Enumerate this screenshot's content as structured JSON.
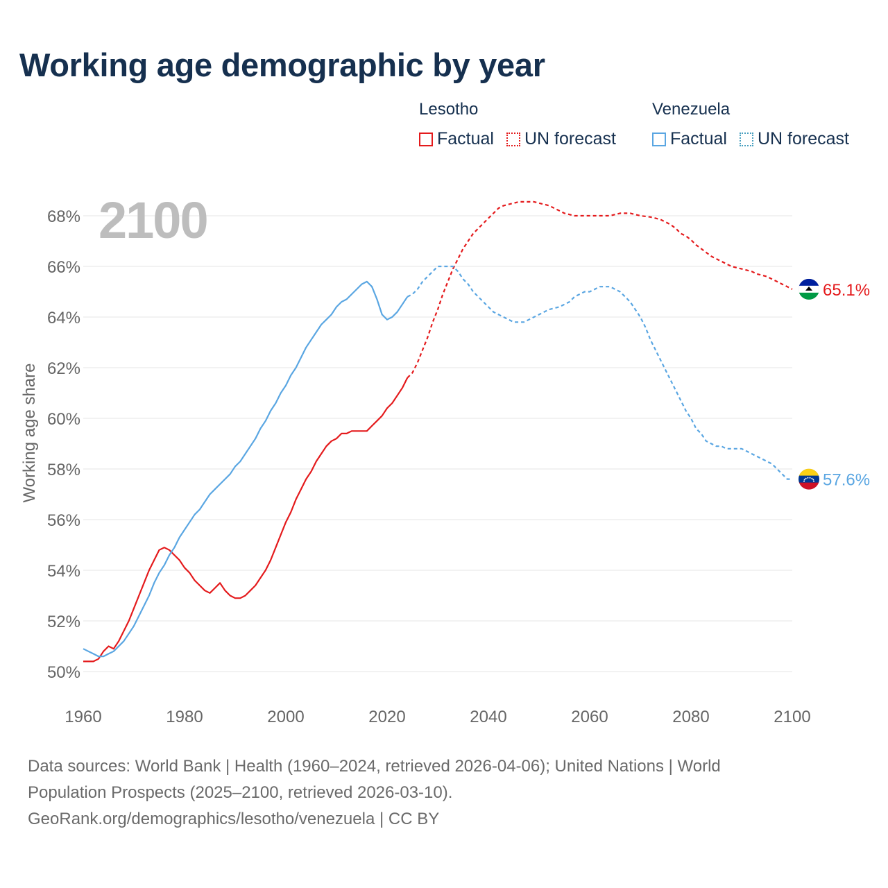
{
  "title": "Working age demographic by year",
  "year_badge": "2100",
  "legend": {
    "groups": [
      {
        "name": "Lesotho",
        "color": "#e41a1c",
        "factual_label": "Factual",
        "forecast_label": "UN forecast"
      },
      {
        "name": "Venezuela",
        "color": "#5aa6e2",
        "forecast_color": "#4aa0c0",
        "factual_label": "Factual",
        "forecast_label": "UN forecast"
      }
    ]
  },
  "source": {
    "line1": "Data sources: World Bank | Health (1960–2024, retrieved 2026-04-06); United Nations | World",
    "line2": "Population Prospects (2025–2100, retrieved 2026-03-10).",
    "line3": "GeoRank.org/demographics/lesotho/venezuela | CC BY"
  },
  "chart_data": {
    "type": "line",
    "title": "Working age demographic by year",
    "xlabel": "",
    "ylabel": "Working age share",
    "xlim": [
      1960,
      2100
    ],
    "ylim": [
      49.5,
      68.7
    ],
    "x_ticks": [
      1960,
      1980,
      2000,
      2020,
      2040,
      2060,
      2080,
      2100
    ],
    "y_ticks": [
      50,
      52,
      54,
      56,
      58,
      60,
      62,
      64,
      66,
      68
    ],
    "y_tick_suffix": "%",
    "grid": true,
    "forecast_start_year": 2024,
    "series": [
      {
        "name": "Lesotho",
        "color": "#e41a1c",
        "end_label": "65.1%",
        "points": [
          [
            1960,
            50.4
          ],
          [
            1962,
            50.4
          ],
          [
            1963,
            50.5
          ],
          [
            1964,
            50.8
          ],
          [
            1965,
            51.0
          ],
          [
            1966,
            50.9
          ],
          [
            1967,
            51.2
          ],
          [
            1968,
            51.6
          ],
          [
            1969,
            52.0
          ],
          [
            1970,
            52.5
          ],
          [
            1971,
            53.0
          ],
          [
            1972,
            53.5
          ],
          [
            1973,
            54.0
          ],
          [
            1974,
            54.4
          ],
          [
            1975,
            54.8
          ],
          [
            1976,
            54.9
          ],
          [
            1977,
            54.8
          ],
          [
            1978,
            54.6
          ],
          [
            1979,
            54.4
          ],
          [
            1980,
            54.1
          ],
          [
            1981,
            53.9
          ],
          [
            1982,
            53.6
          ],
          [
            1983,
            53.4
          ],
          [
            1984,
            53.2
          ],
          [
            1985,
            53.1
          ],
          [
            1986,
            53.3
          ],
          [
            1987,
            53.5
          ],
          [
            1988,
            53.2
          ],
          [
            1989,
            53.0
          ],
          [
            1990,
            52.9
          ],
          [
            1991,
            52.9
          ],
          [
            1992,
            53.0
          ],
          [
            1993,
            53.2
          ],
          [
            1994,
            53.4
          ],
          [
            1995,
            53.7
          ],
          [
            1996,
            54.0
          ],
          [
            1997,
            54.4
          ],
          [
            1998,
            54.9
          ],
          [
            1999,
            55.4
          ],
          [
            2000,
            55.9
          ],
          [
            2001,
            56.3
          ],
          [
            2002,
            56.8
          ],
          [
            2003,
            57.2
          ],
          [
            2004,
            57.6
          ],
          [
            2005,
            57.9
          ],
          [
            2006,
            58.3
          ],
          [
            2007,
            58.6
          ],
          [
            2008,
            58.9
          ],
          [
            2009,
            59.1
          ],
          [
            2010,
            59.2
          ],
          [
            2011,
            59.4
          ],
          [
            2012,
            59.4
          ],
          [
            2013,
            59.5
          ],
          [
            2014,
            59.5
          ],
          [
            2015,
            59.5
          ],
          [
            2016,
            59.5
          ],
          [
            2017,
            59.7
          ],
          [
            2018,
            59.9
          ],
          [
            2019,
            60.1
          ],
          [
            2020,
            60.4
          ],
          [
            2021,
            60.6
          ],
          [
            2022,
            60.9
          ],
          [
            2023,
            61.2
          ],
          [
            2024,
            61.6
          ],
          [
            2025,
            61.8
          ],
          [
            2026,
            62.2
          ],
          [
            2027,
            62.7
          ],
          [
            2028,
            63.2
          ],
          [
            2029,
            63.8
          ],
          [
            2030,
            64.3
          ],
          [
            2031,
            64.9
          ],
          [
            2032,
            65.4
          ],
          [
            2033,
            65.9
          ],
          [
            2034,
            66.3
          ],
          [
            2035,
            66.7
          ],
          [
            2036,
            67.0
          ],
          [
            2037,
            67.3
          ],
          [
            2038,
            67.5
          ],
          [
            2039,
            67.7
          ],
          [
            2040,
            67.9
          ],
          [
            2041,
            68.1
          ],
          [
            2042,
            68.3
          ],
          [
            2043,
            68.4
          ],
          [
            2044,
            68.45
          ],
          [
            2045,
            68.5
          ],
          [
            2046,
            68.55
          ],
          [
            2047,
            68.55
          ],
          [
            2048,
            68.55
          ],
          [
            2049,
            68.55
          ],
          [
            2050,
            68.5
          ],
          [
            2051,
            68.45
          ],
          [
            2052,
            68.4
          ],
          [
            2053,
            68.3
          ],
          [
            2054,
            68.2
          ],
          [
            2055,
            68.1
          ],
          [
            2056,
            68.05
          ],
          [
            2057,
            68.0
          ],
          [
            2058,
            68.0
          ],
          [
            2060,
            68.0
          ],
          [
            2062,
            68.0
          ],
          [
            2064,
            68.0
          ],
          [
            2065,
            68.05
          ],
          [
            2066,
            68.1
          ],
          [
            2068,
            68.1
          ],
          [
            2069,
            68.05
          ],
          [
            2070,
            68.0
          ],
          [
            2072,
            67.95
          ],
          [
            2073,
            67.9
          ],
          [
            2074,
            67.85
          ],
          [
            2075,
            67.75
          ],
          [
            2076,
            67.65
          ],
          [
            2077,
            67.5
          ],
          [
            2078,
            67.3
          ],
          [
            2079,
            67.2
          ],
          [
            2080,
            67.05
          ],
          [
            2081,
            66.85
          ],
          [
            2082,
            66.7
          ],
          [
            2083,
            66.55
          ],
          [
            2084,
            66.4
          ],
          [
            2085,
            66.3
          ],
          [
            2086,
            66.2
          ],
          [
            2087,
            66.1
          ],
          [
            2088,
            66.0
          ],
          [
            2090,
            65.9
          ],
          [
            2092,
            65.8
          ],
          [
            2093,
            65.7
          ],
          [
            2095,
            65.6
          ],
          [
            2096,
            65.5
          ],
          [
            2097,
            65.4
          ],
          [
            2098,
            65.3
          ],
          [
            2099,
            65.2
          ],
          [
            2100,
            65.1
          ]
        ]
      },
      {
        "name": "Venezuela",
        "color": "#5aa6e2",
        "end_label": "57.6%",
        "points": [
          [
            1960,
            50.9
          ],
          [
            1961,
            50.8
          ],
          [
            1962,
            50.7
          ],
          [
            1963,
            50.6
          ],
          [
            1964,
            50.6
          ],
          [
            1965,
            50.7
          ],
          [
            1966,
            50.8
          ],
          [
            1967,
            51.0
          ],
          [
            1968,
            51.2
          ],
          [
            1969,
            51.5
          ],
          [
            1970,
            51.8
          ],
          [
            1971,
            52.2
          ],
          [
            1972,
            52.6
          ],
          [
            1973,
            53.0
          ],
          [
            1974,
            53.5
          ],
          [
            1975,
            53.9
          ],
          [
            1976,
            54.2
          ],
          [
            1977,
            54.6
          ],
          [
            1978,
            54.9
          ],
          [
            1979,
            55.3
          ],
          [
            1980,
            55.6
          ],
          [
            1981,
            55.9
          ],
          [
            1982,
            56.2
          ],
          [
            1983,
            56.4
          ],
          [
            1984,
            56.7
          ],
          [
            1985,
            57.0
          ],
          [
            1986,
            57.2
          ],
          [
            1987,
            57.4
          ],
          [
            1988,
            57.6
          ],
          [
            1989,
            57.8
          ],
          [
            1990,
            58.1
          ],
          [
            1991,
            58.3
          ],
          [
            1992,
            58.6
          ],
          [
            1993,
            58.9
          ],
          [
            1994,
            59.2
          ],
          [
            1995,
            59.6
          ],
          [
            1996,
            59.9
          ],
          [
            1997,
            60.3
          ],
          [
            1998,
            60.6
          ],
          [
            1999,
            61.0
          ],
          [
            2000,
            61.3
          ],
          [
            2001,
            61.7
          ],
          [
            2002,
            62.0
          ],
          [
            2003,
            62.4
          ],
          [
            2004,
            62.8
          ],
          [
            2005,
            63.1
          ],
          [
            2006,
            63.4
          ],
          [
            2007,
            63.7
          ],
          [
            2008,
            63.9
          ],
          [
            2009,
            64.1
          ],
          [
            2010,
            64.4
          ],
          [
            2011,
            64.6
          ],
          [
            2012,
            64.7
          ],
          [
            2013,
            64.9
          ],
          [
            2014,
            65.1
          ],
          [
            2015,
            65.3
          ],
          [
            2016,
            65.4
          ],
          [
            2017,
            65.2
          ],
          [
            2018,
            64.7
          ],
          [
            2019,
            64.1
          ],
          [
            2020,
            63.9
          ],
          [
            2021,
            64.0
          ],
          [
            2022,
            64.2
          ],
          [
            2023,
            64.5
          ],
          [
            2024,
            64.8
          ],
          [
            2025,
            64.9
          ],
          [
            2026,
            65.1
          ],
          [
            2027,
            65.4
          ],
          [
            2028,
            65.6
          ],
          [
            2029,
            65.8
          ],
          [
            2030,
            66.0
          ],
          [
            2031,
            66.0
          ],
          [
            2032,
            66.0
          ],
          [
            2033,
            66.0
          ],
          [
            2034,
            65.8
          ],
          [
            2035,
            65.5
          ],
          [
            2036,
            65.3
          ],
          [
            2037,
            65.0
          ],
          [
            2038,
            64.8
          ],
          [
            2039,
            64.6
          ],
          [
            2040,
            64.4
          ],
          [
            2041,
            64.2
          ],
          [
            2042,
            64.1
          ],
          [
            2043,
            64.0
          ],
          [
            2044,
            63.9
          ],
          [
            2045,
            63.8
          ],
          [
            2047,
            63.8
          ],
          [
            2048,
            63.9
          ],
          [
            2049,
            64.0
          ],
          [
            2050,
            64.1
          ],
          [
            2051,
            64.2
          ],
          [
            2052,
            64.3
          ],
          [
            2054,
            64.4
          ],
          [
            2055,
            64.5
          ],
          [
            2056,
            64.6
          ],
          [
            2057,
            64.8
          ],
          [
            2058,
            64.9
          ],
          [
            2059,
            65.0
          ],
          [
            2060,
            65.0
          ],
          [
            2061,
            65.1
          ],
          [
            2062,
            65.2
          ],
          [
            2064,
            65.2
          ],
          [
            2065,
            65.1
          ],
          [
            2066,
            65.0
          ],
          [
            2067,
            64.8
          ],
          [
            2068,
            64.6
          ],
          [
            2069,
            64.3
          ],
          [
            2070,
            64.0
          ],
          [
            2071,
            63.6
          ],
          [
            2072,
            63.1
          ],
          [
            2073,
            62.7
          ],
          [
            2074,
            62.3
          ],
          [
            2075,
            61.9
          ],
          [
            2076,
            61.5
          ],
          [
            2077,
            61.1
          ],
          [
            2078,
            60.7
          ],
          [
            2079,
            60.3
          ],
          [
            2080,
            60.0
          ],
          [
            2081,
            59.6
          ],
          [
            2082,
            59.4
          ],
          [
            2083,
            59.1
          ],
          [
            2084,
            59.0
          ],
          [
            2085,
            58.9
          ],
          [
            2086,
            58.9
          ],
          [
            2087,
            58.8
          ],
          [
            2090,
            58.8
          ],
          [
            2091,
            58.7
          ],
          [
            2092,
            58.6
          ],
          [
            2093,
            58.5
          ],
          [
            2094,
            58.4
          ],
          [
            2095,
            58.3
          ],
          [
            2096,
            58.2
          ],
          [
            2097,
            58.0
          ],
          [
            2098,
            57.8
          ],
          [
            2099,
            57.6
          ],
          [
            2100,
            57.6
          ]
        ]
      }
    ]
  }
}
